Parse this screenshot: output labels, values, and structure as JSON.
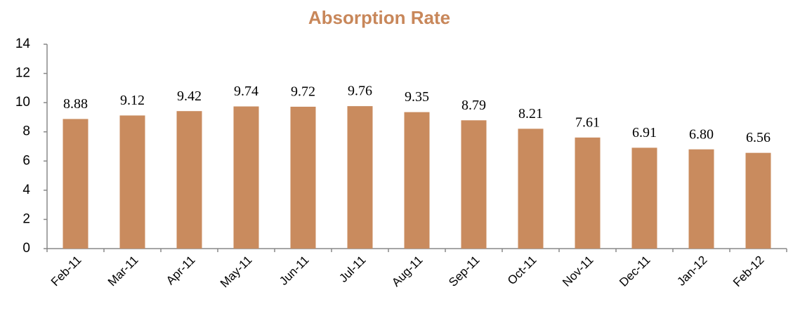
{
  "chart_data": {
    "type": "bar",
    "title": "Absorption Rate",
    "categories": [
      "Feb-11",
      "Mar-11",
      "Apr-11",
      "May-11",
      "Jun-11",
      "Jul-11",
      "Aug-11",
      "Sep-11",
      "Oct-11",
      "Nov-11",
      "Dec-11",
      "Jan-12",
      "Feb-12"
    ],
    "values": [
      8.88,
      9.12,
      9.42,
      9.74,
      9.72,
      9.76,
      9.35,
      8.79,
      8.21,
      7.61,
      6.91,
      6.8,
      6.56
    ],
    "value_labels": [
      "8.88",
      "9.12",
      "9.42",
      "9.74",
      "9.72",
      "9.76",
      "9.35",
      "8.79",
      "8.21",
      "7.61",
      "6.91",
      "6.80",
      "6.56"
    ],
    "color": "#c98b5e",
    "ylim": [
      0,
      14
    ],
    "yticks": [
      0,
      2,
      4,
      6,
      8,
      10,
      12,
      14
    ],
    "grid": false
  }
}
